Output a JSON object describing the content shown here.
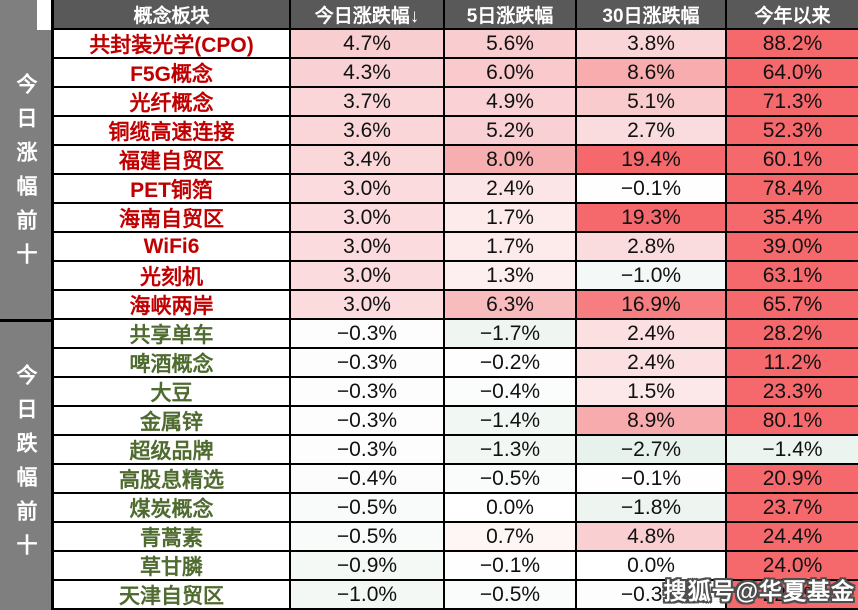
{
  "palette": {
    "header_bg": "#595959",
    "sidebar_bg": "#7F7F7F",
    "border": "#000000",
    "gainer_name": "#C00000",
    "loser_name": "#4F6B2F",
    "full_red": "#F5696C",
    "pale_green": "#EBF4EF"
  },
  "sidebar": {
    "top_label": "今日涨幅前十",
    "bottom_label": "今日跌幅前十"
  },
  "watermark": {
    "text": "搜狐号@华夏基金"
  },
  "table": {
    "columns": [
      "概念板块",
      "今日涨跌幅↓",
      "5日涨跌幅",
      "30日涨跌幅",
      "今年以来"
    ],
    "rows": [
      {
        "name": "共封装光学(CPO)",
        "type": "gainer",
        "cells": [
          {
            "t": "4.7%",
            "bg": "#F9CED1"
          },
          {
            "t": "5.6%",
            "bg": "#F9CDD0"
          },
          {
            "t": "3.8%",
            "bg": "#FAD5D7"
          },
          {
            "t": "88.2%",
            "bg": "#F5696C"
          }
        ]
      },
      {
        "name": "F5G概念",
        "type": "gainer",
        "cells": [
          {
            "t": "4.3%",
            "bg": "#F9D1D4"
          },
          {
            "t": "6.0%",
            "bg": "#F9C9CC"
          },
          {
            "t": "8.6%",
            "bg": "#F8ACAE"
          },
          {
            "t": "64.0%",
            "bg": "#F5696C"
          }
        ]
      },
      {
        "name": "光纤概念",
        "type": "gainer",
        "cells": [
          {
            "t": "3.7%",
            "bg": "#FAD6D8"
          },
          {
            "t": "4.9%",
            "bg": "#FAD2D5"
          },
          {
            "t": "5.1%",
            "bg": "#FACBCD"
          },
          {
            "t": "71.3%",
            "bg": "#F5696C"
          }
        ]
      },
      {
        "name": "铜缆高速连接",
        "type": "gainer",
        "cells": [
          {
            "t": "3.6%",
            "bg": "#FAD6D9"
          },
          {
            "t": "5.2%",
            "bg": "#F9D0D3"
          },
          {
            "t": "2.7%",
            "bg": "#FBDCDE"
          },
          {
            "t": "52.3%",
            "bg": "#F5696C"
          }
        ]
      },
      {
        "name": "福建自贸区",
        "type": "gainer",
        "cells": [
          {
            "t": "3.4%",
            "bg": "#FAD8DA"
          },
          {
            "t": "8.0%",
            "bg": "#F7AEB0"
          },
          {
            "t": "19.4%",
            "bg": "#F5696C"
          },
          {
            "t": "60.1%",
            "bg": "#F5696C"
          }
        ]
      },
      {
        "name": "PET铜箔",
        "type": "gainer",
        "cells": [
          {
            "t": "3.0%",
            "bg": "#FBDBDD"
          },
          {
            "t": "2.4%",
            "bg": "#FCE5E6"
          },
          {
            "t": "−0.1%",
            "bg": "#FEFEFE"
          },
          {
            "t": "78.4%",
            "bg": "#F5696C"
          }
        ]
      },
      {
        "name": "海南自贸区",
        "type": "gainer",
        "cells": [
          {
            "t": "3.0%",
            "bg": "#FBDBDD"
          },
          {
            "t": "1.7%",
            "bg": "#FDEBEC"
          },
          {
            "t": "19.3%",
            "bg": "#F5696C"
          },
          {
            "t": "35.4%",
            "bg": "#F5696C"
          }
        ]
      },
      {
        "name": "WiFi6",
        "type": "gainer",
        "cells": [
          {
            "t": "3.0%",
            "bg": "#FBDBDD"
          },
          {
            "t": "1.7%",
            "bg": "#FDEBEC"
          },
          {
            "t": "2.8%",
            "bg": "#FBDCDE"
          },
          {
            "t": "39.0%",
            "bg": "#F5696C"
          }
        ]
      },
      {
        "name": "光刻机",
        "type": "gainer",
        "cells": [
          {
            "t": "3.0%",
            "bg": "#FBDBDD"
          },
          {
            "t": "1.3%",
            "bg": "#FDEEEF"
          },
          {
            "t": "−1.0%",
            "bg": "#F4F8F6"
          },
          {
            "t": "63.1%",
            "bg": "#F5696C"
          }
        ]
      },
      {
        "name": "海峡两岸",
        "type": "gainer",
        "cells": [
          {
            "t": "3.0%",
            "bg": "#FBDBDD"
          },
          {
            "t": "6.3%",
            "bg": "#F8BCBE"
          },
          {
            "t": "16.9%",
            "bg": "#F67E80"
          },
          {
            "t": "65.7%",
            "bg": "#F5696C"
          }
        ]
      },
      {
        "name": "共享单车",
        "type": "loser",
        "cells": [
          {
            "t": "−0.3%",
            "bg": "#FCFDFC"
          },
          {
            "t": "−1.7%",
            "bg": "#EFF6F1"
          },
          {
            "t": "2.4%",
            "bg": "#FCE0E1"
          },
          {
            "t": "28.2%",
            "bg": "#F5696C"
          }
        ]
      },
      {
        "name": "啤酒概念",
        "type": "loser",
        "cells": [
          {
            "t": "−0.3%",
            "bg": "#FCFDFC"
          },
          {
            "t": "−0.2%",
            "bg": "#FDFEFD"
          },
          {
            "t": "2.4%",
            "bg": "#FCE0E1"
          },
          {
            "t": "11.2%",
            "bg": "#F5696C"
          }
        ]
      },
      {
        "name": "大豆",
        "type": "loser",
        "cells": [
          {
            "t": "−0.3%",
            "bg": "#FCFDFC"
          },
          {
            "t": "−0.4%",
            "bg": "#FBFDFC"
          },
          {
            "t": "1.5%",
            "bg": "#FCE8E9"
          },
          {
            "t": "23.3%",
            "bg": "#F5696C"
          }
        ]
      },
      {
        "name": "金属锌",
        "type": "loser",
        "cells": [
          {
            "t": "−0.3%",
            "bg": "#FCFDFC"
          },
          {
            "t": "−1.4%",
            "bg": "#F1F7F3"
          },
          {
            "t": "8.9%",
            "bg": "#F8ABAD"
          },
          {
            "t": "80.1%",
            "bg": "#F5696C"
          }
        ]
      },
      {
        "name": "超级品牌",
        "type": "loser",
        "cells": [
          {
            "t": "−0.3%",
            "bg": "#FCFDFC"
          },
          {
            "t": "−1.3%",
            "bg": "#F2F7F4"
          },
          {
            "t": "−2.7%",
            "bg": "#E8F2EC"
          },
          {
            "t": "−1.4%",
            "bg": "#EBF4EF"
          }
        ]
      },
      {
        "name": "高股息精选",
        "type": "loser",
        "cells": [
          {
            "t": "−0.4%",
            "bg": "#FBFCFB"
          },
          {
            "t": "−0.5%",
            "bg": "#FAFCFB"
          },
          {
            "t": "−0.1%",
            "bg": "#FEFEFE"
          },
          {
            "t": "20.9%",
            "bg": "#F5696C"
          }
        ]
      },
      {
        "name": "煤炭概念",
        "type": "loser",
        "cells": [
          {
            "t": "−0.5%",
            "bg": "#F9FBFA"
          },
          {
            "t": "0.0%",
            "bg": "#FFFFFF"
          },
          {
            "t": "−1.8%",
            "bg": "#EEF5F1"
          },
          {
            "t": "23.7%",
            "bg": "#F5696C"
          }
        ]
      },
      {
        "name": "青蒿素",
        "type": "loser",
        "cells": [
          {
            "t": "−0.5%",
            "bg": "#F9FBFA"
          },
          {
            "t": "0.7%",
            "bg": "#FEF5F5"
          },
          {
            "t": "4.8%",
            "bg": "#FACFD1"
          },
          {
            "t": "24.4%",
            "bg": "#F5696C"
          }
        ]
      },
      {
        "name": "草甘膦",
        "type": "loser",
        "cells": [
          {
            "t": "−0.9%",
            "bg": "#F5F9F6"
          },
          {
            "t": "−0.1%",
            "bg": "#FEFEFE"
          },
          {
            "t": "0.0%",
            "bg": "#FFFFFF"
          },
          {
            "t": "24.0%",
            "bg": "#F5696C"
          }
        ]
      },
      {
        "name": "天津自贸区",
        "type": "loser",
        "cells": [
          {
            "t": "−1.0%",
            "bg": "#F4F8F5"
          },
          {
            "t": "−0.5%",
            "bg": "#FAFCFB"
          },
          {
            "t": "−0.3%",
            "bg": "#FCFDFC"
          },
          {
            "t": "22.4%",
            "bg": "#F5696C"
          }
        ]
      }
    ]
  },
  "chart_data": {
    "type": "table",
    "columns": [
      "概念板块",
      "今日涨跌幅",
      "5日涨跌幅",
      "30日涨跌幅",
      "今年以来"
    ],
    "unit": "%",
    "sort": "今日涨跌幅 descending",
    "sections": [
      {
        "label": "今日涨幅前十",
        "rows": [
          [
            "共封装光学(CPO)",
            4.7,
            5.6,
            3.8,
            88.2
          ],
          [
            "F5G概念",
            4.3,
            6.0,
            8.6,
            64.0
          ],
          [
            "光纤概念",
            3.7,
            4.9,
            5.1,
            71.3
          ],
          [
            "铜缆高速连接",
            3.6,
            5.2,
            2.7,
            52.3
          ],
          [
            "福建自贸区",
            3.4,
            8.0,
            19.4,
            60.1
          ],
          [
            "PET铜箔",
            3.0,
            2.4,
            -0.1,
            78.4
          ],
          [
            "海南自贸区",
            3.0,
            1.7,
            19.3,
            35.4
          ],
          [
            "WiFi6",
            3.0,
            1.7,
            2.8,
            39.0
          ],
          [
            "光刻机",
            3.0,
            1.3,
            -1.0,
            63.1
          ],
          [
            "海峡两岸",
            3.0,
            6.3,
            16.9,
            65.7
          ]
        ]
      },
      {
        "label": "今日跌幅前十",
        "rows": [
          [
            "共享单车",
            -0.3,
            -1.7,
            2.4,
            28.2
          ],
          [
            "啤酒概念",
            -0.3,
            -0.2,
            2.4,
            11.2
          ],
          [
            "大豆",
            -0.3,
            -0.4,
            1.5,
            23.3
          ],
          [
            "金属锌",
            -0.3,
            -1.4,
            8.9,
            80.1
          ],
          [
            "超级品牌",
            -0.3,
            -1.3,
            -2.7,
            -1.4
          ],
          [
            "高股息精选",
            -0.4,
            -0.5,
            -0.1,
            20.9
          ],
          [
            "煤炭概念",
            -0.5,
            0.0,
            -1.8,
            23.7
          ],
          [
            "青蒿素",
            -0.5,
            0.7,
            4.8,
            24.4
          ],
          [
            "草甘膦",
            -0.9,
            -0.1,
            0.0,
            24.0
          ],
          [
            "天津自贸区",
            -1.0,
            -0.5,
            -0.3,
            22.4
          ]
        ]
      }
    ]
  }
}
